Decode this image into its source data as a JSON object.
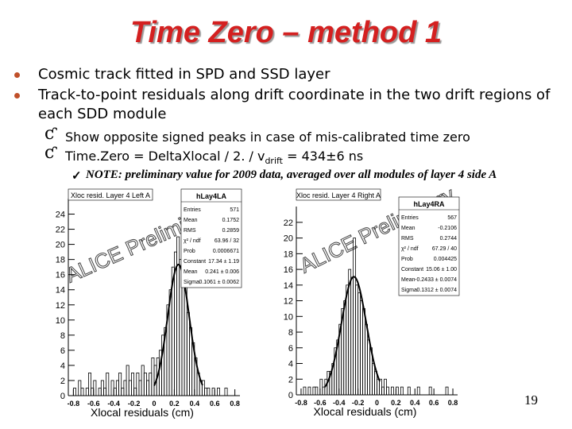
{
  "title": "Time Zero – method 1",
  "bullets": [
    "Cosmic track fitted in SPD and SSD layer",
    "Track-to-point residuals along drift coordinate in the two drift regions of each SDD module"
  ],
  "subbullets": [
    [
      "Show opposite signed peaks in case of mis-calibrated time zero"
    ],
    [
      "Time.Zero = DeltaXlocal / 2. / v",
      "drift",
      " = 434±6 ns"
    ]
  ],
  "note": "NOTE: preliminary value for 2009 data, averaged over all modules of layer 4 side A",
  "plots": [
    {
      "title": "Xloc resid. Layer 4 Left A",
      "name": "hLay4LA",
      "stats": [
        [
          "Entries",
          "571"
        ],
        [
          "Mean",
          "0.1752"
        ],
        [
          "RMS",
          "0.2859"
        ],
        [
          "χ² / ndf",
          "63.96 / 32"
        ],
        [
          "Prob",
          "0.0006671"
        ],
        [
          "Constant",
          "17.34 ± 1.19"
        ],
        [
          "Mean",
          "0.241 ± 0.006"
        ],
        [
          "Sigma",
          "0.1061 ± 0.0062"
        ]
      ],
      "watermark": "ALICE Preliminary",
      "xlabel": "Xlocal residuals (cm)",
      "xlim": [
        -0.85,
        0.85
      ],
      "ylim": [
        0,
        25
      ],
      "xticks": [
        -0.8,
        -0.6,
        -0.4,
        -0.2,
        0,
        0.2,
        0.4,
        0.6,
        0.8
      ],
      "yticks": [
        0,
        2,
        4,
        6,
        8,
        10,
        12,
        14,
        16,
        18,
        20,
        22,
        24
      ],
      "bins": [
        -0.8,
        -0.775,
        -0.75,
        -0.725,
        -0.7,
        -0.675,
        -0.65,
        -0.625,
        -0.6,
        -0.575,
        -0.55,
        -0.525,
        -0.5,
        -0.475,
        -0.45,
        -0.425,
        -0.4,
        -0.375,
        -0.35,
        -0.325,
        -0.3,
        -0.275,
        -0.25,
        -0.225,
        -0.2,
        -0.175,
        -0.15,
        -0.125,
        -0.1,
        -0.075,
        -0.05,
        -0.025,
        0,
        0.025,
        0.05,
        0.075,
        0.1,
        0.125,
        0.15,
        0.175,
        0.2,
        0.225,
        0.25,
        0.275,
        0.3,
        0.325,
        0.35,
        0.375,
        0.4,
        0.425,
        0.45,
        0.475,
        0.5,
        0.525,
        0.55,
        0.575,
        0.6,
        0.625,
        0.65,
        0.675,
        0.7,
        0.725,
        0.75,
        0.775,
        0.8
      ],
      "counts": [
        1,
        0,
        2,
        1,
        0,
        1,
        3,
        1,
        2,
        0,
        1,
        2,
        1,
        3,
        0,
        2,
        1,
        2,
        3,
        1,
        2,
        4,
        2,
        3,
        1,
        3,
        2,
        4,
        3,
        2,
        3,
        5,
        4,
        5,
        6,
        8,
        9,
        12,
        14,
        17,
        19,
        21,
        18,
        16,
        15,
        11,
        9,
        7,
        5,
        3,
        2,
        2,
        1,
        1,
        0,
        1,
        0,
        1,
        0,
        0,
        1,
        0,
        0,
        0
      ],
      "fit": {
        "constant": 17.34,
        "mean": 0.241,
        "sigma": 0.1061,
        "range": [
          0.0,
          0.48
        ]
      }
    },
    {
      "title": "Xloc resid. Layer 4 Right A",
      "name": "hLay4RA",
      "stats": [
        [
          "Entries",
          "567"
        ],
        [
          "Mean",
          "-0.2106"
        ],
        [
          "RMS",
          "0.2744"
        ],
        [
          "χ² / ndf",
          "67.29 / 40"
        ],
        [
          "Prob",
          "0.004425"
        ],
        [
          "Constant",
          "15.06 ± 1.00"
        ],
        [
          "Mean",
          "-0.2433 ± 0.0074"
        ],
        [
          "Sigma",
          "0.1312 ± 0.0074"
        ]
      ],
      "watermark": "ALICE Preliminary",
      "xlabel": "Xlocal residuals (cm)",
      "xlim": [
        -0.85,
        0.85
      ],
      "ylim": [
        0,
        23
      ],
      "xticks": [
        -0.8,
        -0.6,
        -0.4,
        -0.2,
        0,
        0.2,
        0.4,
        0.6,
        0.8
      ],
      "yticks": [
        0,
        2,
        4,
        6,
        8,
        10,
        12,
        14,
        16,
        18,
        20,
        22
      ],
      "bins": [
        -0.8,
        -0.775,
        -0.75,
        -0.725,
        -0.7,
        -0.675,
        -0.65,
        -0.625,
        -0.6,
        -0.575,
        -0.55,
        -0.525,
        -0.5,
        -0.475,
        -0.45,
        -0.425,
        -0.4,
        -0.375,
        -0.35,
        -0.325,
        -0.3,
        -0.275,
        -0.25,
        -0.225,
        -0.2,
        -0.175,
        -0.15,
        -0.125,
        -0.1,
        -0.075,
        -0.05,
        -0.025,
        0,
        0.025,
        0.05,
        0.075,
        0.1,
        0.125,
        0.15,
        0.175,
        0.2,
        0.225,
        0.25,
        0.275,
        0.3,
        0.325,
        0.35,
        0.375,
        0.4,
        0.425,
        0.45,
        0.475,
        0.5,
        0.525,
        0.55,
        0.575,
        0.6,
        0.625,
        0.65,
        0.675,
        0.7,
        0.725,
        0.75,
        0.775,
        0.8
      ],
      "counts": [
        0,
        1,
        0,
        1,
        0,
        1,
        1,
        0,
        2,
        1,
        2,
        3,
        3,
        4,
        6,
        7,
        9,
        11,
        12,
        14,
        16,
        15,
        20,
        14,
        13,
        12,
        11,
        9,
        7,
        6,
        4,
        3,
        2,
        2,
        1,
        2,
        1,
        0,
        1,
        0,
        1,
        0,
        1,
        0,
        0,
        1,
        0,
        0,
        0,
        1,
        0,
        0,
        0,
        0,
        1,
        0,
        0,
        0,
        0,
        0,
        0,
        1,
        0,
        0
      ],
      "fit": {
        "constant": 15.06,
        "mean": -0.2433,
        "sigma": 0.1312,
        "range": [
          -0.55,
          0.03
        ]
      }
    }
  ],
  "page_number": "19"
}
